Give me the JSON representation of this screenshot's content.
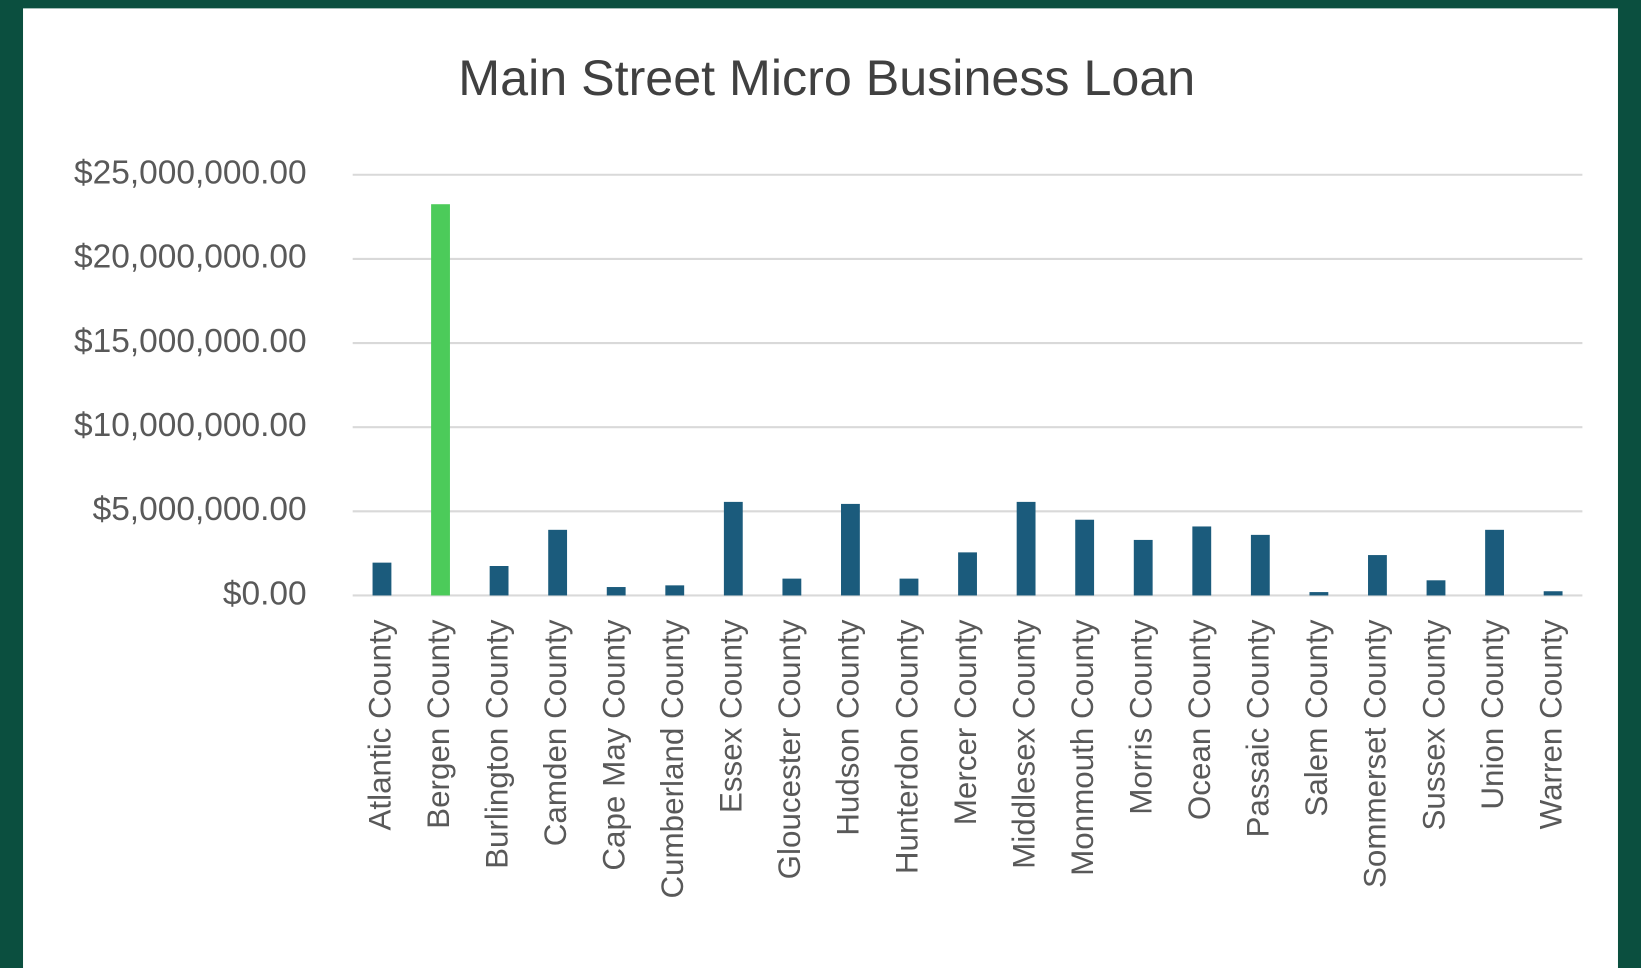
{
  "chart_data": {
    "type": "bar",
    "title": "Main Street Micro Business Loan",
    "categories": [
      "Atlantic County",
      "Bergen County",
      "Burlington County",
      "Camden County",
      "Cape May County",
      "Cumberland County",
      "Essex County",
      "Gloucester County",
      "Hudson County",
      "Hunterdon County",
      "Mercer County",
      "Middlesex County",
      "Monmouth County",
      "Morris County",
      "Ocean County",
      "Passaic County",
      "Salem County",
      "Sommerset County",
      "Sussex County",
      "Union County",
      "Warren County"
    ],
    "values": [
      1950000,
      23250000,
      1750000,
      3900000,
      500000,
      600000,
      5560000,
      1000000,
      5440000,
      1000000,
      2560000,
      5560000,
      4500000,
      3300000,
      4100000,
      3600000,
      200000,
      2400000,
      900000,
      3900000,
      250000
    ],
    "colors": [
      "#1b5b7c",
      "#4ccb5a",
      "#1b5b7c",
      "#1b5b7c",
      "#1b5b7c",
      "#1b5b7c",
      "#1b5b7c",
      "#1b5b7c",
      "#1b5b7c",
      "#1b5b7c",
      "#1b5b7c",
      "#1b5b7c",
      "#1b5b7c",
      "#1b5b7c",
      "#1b5b7c",
      "#1b5b7c",
      "#1b5b7c",
      "#1b5b7c",
      "#1b5b7c",
      "#1b5b7c",
      "#1b5b7c"
    ],
    "ylim": [
      0,
      25000000
    ],
    "yticks": [
      {
        "value": 0,
        "label": "$0.00"
      },
      {
        "value": 5000000,
        "label": "$5,000,000.00"
      },
      {
        "value": 10000000,
        "label": "$10,000,000.00"
      },
      {
        "value": 15000000,
        "label": "$15,000,000.00"
      },
      {
        "value": 20000000,
        "label": "$20,000,000.00"
      },
      {
        "value": 25000000,
        "label": "$25,000,000.00"
      }
    ],
    "grid": true
  }
}
